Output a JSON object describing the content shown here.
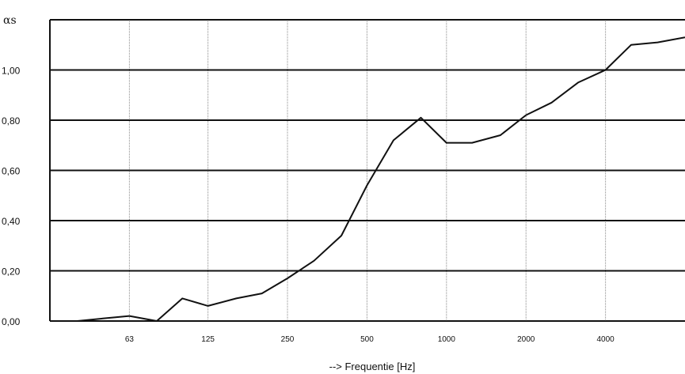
{
  "chart_data": {
    "type": "line",
    "ylabel": "αs",
    "xlabel": "--> Frequentie [Hz]",
    "x_scale": "log",
    "xlim": [
      31.5,
      8000
    ],
    "ylim": [
      0,
      1.2
    ],
    "grid": true,
    "x_ticks": [
      "63",
      "125",
      "250",
      "500",
      "1000",
      "2000",
      "4000"
    ],
    "y_ticks": [
      "0,00",
      "0,20",
      "0,40",
      "0,60",
      "0,80",
      "1,00"
    ],
    "y_tick_values": [
      0,
      0.2,
      0.4,
      0.6,
      0.8,
      1.0
    ],
    "series": [
      {
        "color": "#111111",
        "x": [
          40,
          50,
          63,
          80,
          100,
          125,
          160,
          200,
          250,
          315,
          400,
          500,
          630,
          800,
          1000,
          1250,
          1600,
          2000,
          2500,
          3150,
          4000,
          5000,
          6300,
          8000
        ],
        "y": [
          0.0,
          0.01,
          0.02,
          0.0,
          0.09,
          0.06,
          0.09,
          0.11,
          0.17,
          0.24,
          0.34,
          0.54,
          0.72,
          0.81,
          0.71,
          0.71,
          0.74,
          0.82,
          0.87,
          0.95,
          1.0,
          1.1,
          1.11,
          1.13
        ]
      }
    ]
  }
}
